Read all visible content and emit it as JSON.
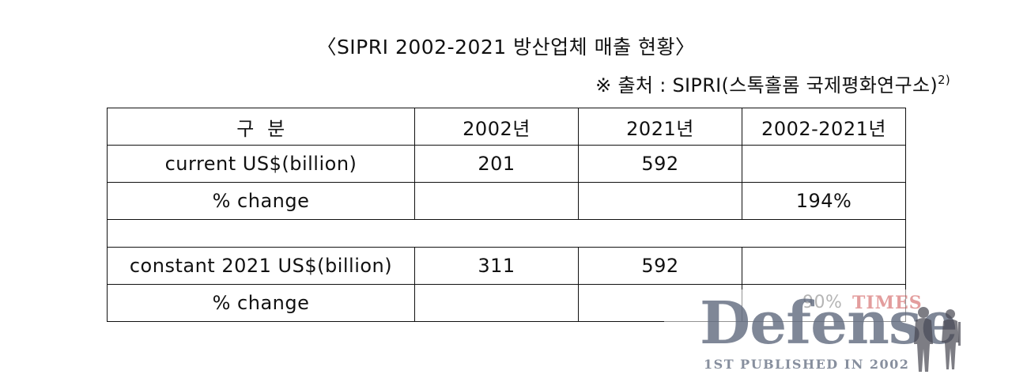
{
  "title": "〈SIPRI 2002-2021 방산업체 매출 현황〉",
  "source": {
    "text": "※ 출처 : SIPRI(스톡홀롬 국제평화연구소)",
    "footnote": "2)"
  },
  "table": {
    "headers": [
      "구  분",
      "2002년",
      "2021년",
      "2002-2021년"
    ],
    "rows": [
      {
        "label": "current US$(billion)",
        "y2002": "201",
        "y2021": "592",
        "change": ""
      },
      {
        "label": "% change",
        "y2002": "",
        "y2021": "",
        "change": "194%"
      },
      {
        "label": "constant 2021 US$(billion)",
        "y2002": "311",
        "y2021": "592",
        "change": ""
      },
      {
        "label": "% change",
        "y2002": "",
        "y2021": "",
        "change": "90%"
      }
    ]
  },
  "watermark": {
    "times": "TIMES",
    "logo": "Defense",
    "tagline": "1ST PUBLISHED IN 2002",
    "figures_icon": "soldier-silhouettes-icon"
  }
}
